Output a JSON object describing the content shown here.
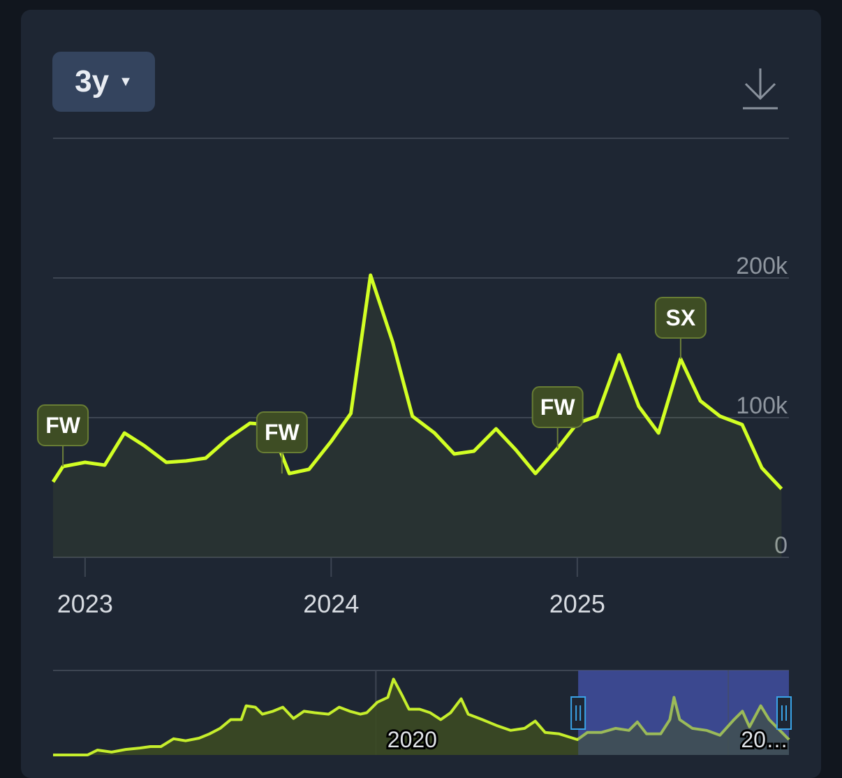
{
  "range_label": "3y",
  "chart_data": [
    {
      "type": "line",
      "x": [
        2022.87,
        2022.91,
        2023.0,
        2023.08,
        2023.16,
        2023.24,
        2023.33,
        2023.41,
        2023.49,
        2023.58,
        2023.67,
        2023.75,
        2023.83,
        2023.91,
        2024.0,
        2024.08,
        2024.16,
        2024.25,
        2024.33,
        2024.42,
        2024.5,
        2024.58,
        2024.67,
        2024.75,
        2024.83,
        2024.92,
        2025.0,
        2025.08,
        2025.17,
        2025.25,
        2025.33,
        2025.42,
        2025.5,
        2025.58,
        2025.67,
        2025.75,
        2025.83
      ],
      "series": [
        {
          "color": "#d2ff24",
          "values": [
            54000,
            65000,
            68000,
            66000,
            89000,
            80000,
            68000,
            69000,
            71000,
            85000,
            96000,
            95000,
            60000,
            63000,
            83000,
            103000,
            202000,
            154000,
            101000,
            89000,
            74000,
            76000,
            92000,
            77000,
            60000,
            78000,
            96000,
            101000,
            145000,
            108000,
            89000,
            142000,
            112000,
            101000,
            95000,
            64000,
            49000
          ]
        }
      ],
      "xlim": [
        2022.87,
        2025.86
      ],
      "xticks": [
        2023,
        2024,
        2025
      ],
      "ylim": [
        0,
        300000
      ],
      "yticks": [
        0,
        {
          "value": 100000,
          "label": "100k"
        },
        {
          "value": 200000,
          "label": "200k"
        },
        {
          "value": 300000,
          "label": ""
        }
      ],
      "grid": true,
      "annotations": [
        {
          "label": "FW",
          "x": 2022.91
        },
        {
          "label": "FW",
          "x": 2023.8
        },
        {
          "label": "FW",
          "x": 2024.92
        },
        {
          "label": "SX",
          "x": 2025.42
        }
      ]
    },
    {
      "type": "area",
      "x": [
        2015.42,
        2015.91,
        2016.05,
        2016.25,
        2016.45,
        2016.65,
        2016.8,
        2016.95,
        2017.13,
        2017.3,
        2017.49,
        2017.64,
        2017.79,
        2017.94,
        2018.09,
        2018.16,
        2018.29,
        2018.39,
        2018.54,
        2018.68,
        2018.83,
        2018.98,
        2019.13,
        2019.33,
        2019.48,
        2019.63,
        2019.78,
        2019.87,
        2020.02,
        2020.17,
        2020.25,
        2020.37,
        2020.47,
        2020.62,
        2020.77,
        2020.92,
        2021.06,
        2021.21,
        2021.31,
        2021.51,
        2021.71,
        2021.91,
        2022.11,
        2022.26,
        2022.4,
        2022.6,
        2022.86,
        2023.0,
        2023.2,
        2023.4,
        2023.59,
        2023.71,
        2023.84,
        2024.04,
        2024.17,
        2024.23,
        2024.31,
        2024.49,
        2024.69,
        2024.88,
        2025.08,
        2025.2,
        2025.3,
        2025.46,
        2025.58,
        2025.76,
        2025.86
      ],
      "series": [
        {
          "color": "#c6ee2c",
          "values": [
            0,
            0,
            17000,
            10000,
            19000,
            24000,
            29000,
            29000,
            56000,
            49000,
            58000,
            73000,
            92000,
            122000,
            122000,
            170000,
            165000,
            141000,
            151000,
            165000,
            126000,
            151000,
            146000,
            141000,
            165000,
            151000,
            141000,
            146000,
            182000,
            199000,
            262000,
            207000,
            158000,
            158000,
            146000,
            122000,
            146000,
            194000,
            141000,
            122000,
            102000,
            85000,
            92000,
            117000,
            78000,
            73000,
            53000,
            78000,
            78000,
            92000,
            85000,
            114000,
            73000,
            73000,
            122000,
            199000,
            122000,
            92000,
            85000,
            68000,
            122000,
            151000,
            97000,
            170000,
            122000,
            78000,
            53000
          ]
        }
      ],
      "xlim": [
        2015.42,
        2025.86
      ],
      "xticks": [
        2020,
        {
          "value": 2025,
          "label": "20…"
        }
      ],
      "ylim": [
        0,
        292000
      ]
    }
  ]
}
